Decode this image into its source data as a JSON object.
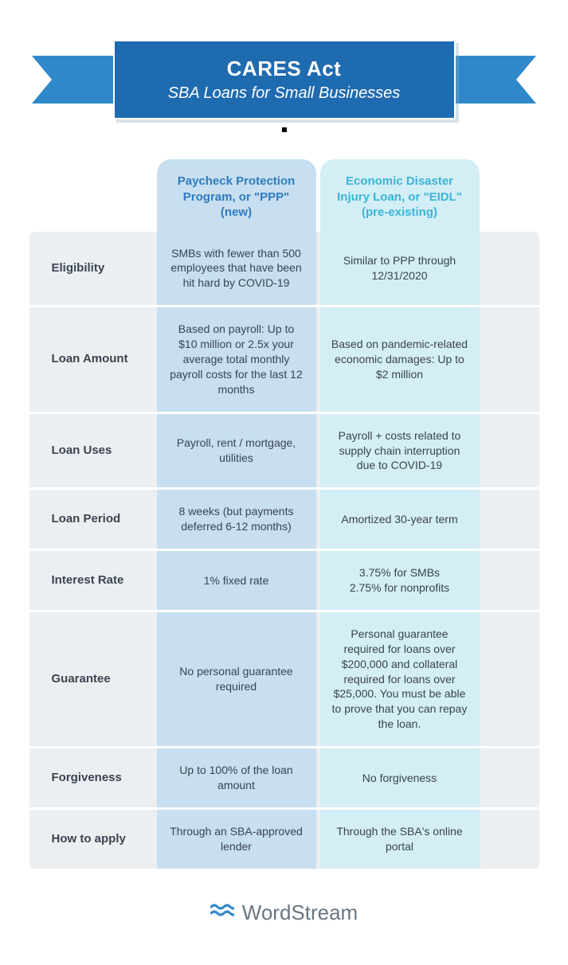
{
  "colors": {
    "banner_main": "#1f6bb0",
    "banner_side": "#2f88c9",
    "banner_fold": "#0e4576",
    "ppp_head_bg": "#c7dff0",
    "ppp_head_txt": "#2f7abf",
    "eidl_head_bg": "#d4eef6",
    "eidl_head_txt": "#3cb5d6",
    "body_bg": "#eceff2",
    "ppp_col_bg": "#c7dff0",
    "eidl_col_bg": "#d4eef6",
    "label_txt": "#3a4450",
    "cell_txt": "#3a4450",
    "logo_blue": "#2f88c9",
    "logo_grey": "#6a7682"
  },
  "banner": {
    "title": "CARES Act",
    "subtitle": "SBA Loans for Small Businesses"
  },
  "columns": {
    "ppp": "Paycheck Protection Program, or \"PPP\" (new)",
    "eidl": "Economic Disaster Injury Loan, or \"EIDL\" (pre-existing)"
  },
  "rows": [
    {
      "label": "Eligibility",
      "ppp": "SMBs with fewer than 500 employees that have been hit hard by COVID-19",
      "eidl": "Similar to PPP through 12/31/2020"
    },
    {
      "label": "Loan Amount",
      "ppp": "Based on payroll: Up to $10 million or 2.5x your average total monthly payroll costs for the last 12 months",
      "eidl": "Based on pandemic-related economic damages: Up to $2 million"
    },
    {
      "label": "Loan Uses",
      "ppp": "Payroll, rent / mortgage, utilities",
      "eidl": "Payroll + costs related to supply chain interruption due to COVID-19"
    },
    {
      "label": "Loan Period",
      "ppp": "8 weeks (but payments deferred 6-12 months)",
      "eidl": "Amortized 30-year term"
    },
    {
      "label": "Interest Rate",
      "ppp": "1% fixed rate",
      "eidl": "3.75% for SMBs\n2.75% for nonprofits"
    },
    {
      "label": "Guarantee",
      "ppp": "No personal guarantee required",
      "eidl": "Personal guarantee required for loans over $200,000 and collateral required for loans over $25,000. You must be able to prove that you can repay the loan."
    },
    {
      "label": "Forgiveness",
      "ppp": "Up to 100% of the loan amount",
      "eidl": "No forgiveness"
    },
    {
      "label": "How to apply",
      "ppp": "Through an SBA-approved lender",
      "eidl": "Through the SBA's online portal"
    }
  ],
  "footer": {
    "brand": "WordStream"
  }
}
